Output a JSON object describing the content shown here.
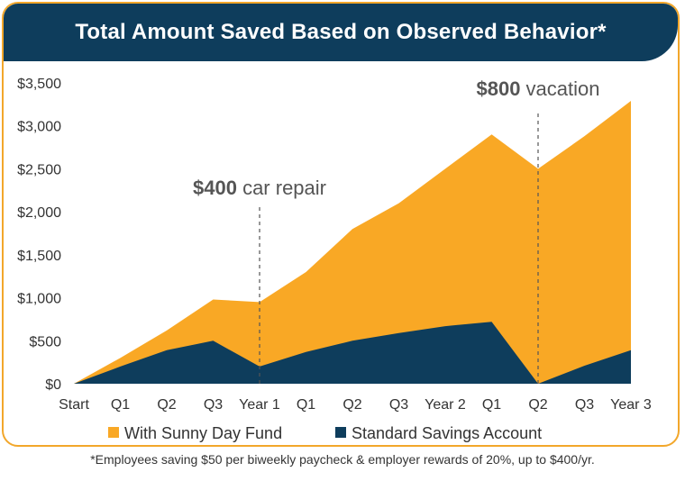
{
  "chart_data": {
    "type": "area",
    "title": "Total Amount Saved Based on Observed Behavior*",
    "categories": [
      "Start",
      "Q1",
      "Q2",
      "Q3",
      "Year 1",
      "Q1",
      "Q2",
      "Q3",
      "Year 2",
      "Q1",
      "Q2",
      "Q3",
      "Year 3"
    ],
    "series": [
      {
        "name": "With Sunny Day Fund",
        "color": "#f9a825",
        "values": [
          0,
          300,
          620,
          980,
          950,
          1300,
          1800,
          2100,
          2500,
          2900,
          2500,
          2880,
          3290
        ]
      },
      {
        "name": "Standard Savings Account",
        "color": "#0e3d5c",
        "values": [
          0,
          200,
          390,
          500,
          200,
          370,
          500,
          590,
          670,
          720,
          0,
          210,
          390
        ]
      }
    ],
    "ylim": [
      0,
      3500
    ],
    "yticks": [
      {
        "value": 0,
        "label": "$0"
      },
      {
        "value": 500,
        "label": "$500"
      },
      {
        "value": 1000,
        "label": "$1,000"
      },
      {
        "value": 1500,
        "label": "$1,500"
      },
      {
        "value": 2000,
        "label": "$2,000"
      },
      {
        "value": 2500,
        "label": "$2,500"
      },
      {
        "value": 3000,
        "label": "$3,000"
      },
      {
        "value": 3500,
        "label": "$3,500"
      }
    ],
    "annotations": [
      {
        "amount": "$400",
        "text": " car repair",
        "category_index": 4
      },
      {
        "amount": "$800",
        "text": " vacation",
        "category_index": 10
      }
    ],
    "legend_position": "bottom"
  },
  "footnote": "*Employees saving $50 per biweekly paycheck & employer rewards of 20%, up to $400/yr."
}
